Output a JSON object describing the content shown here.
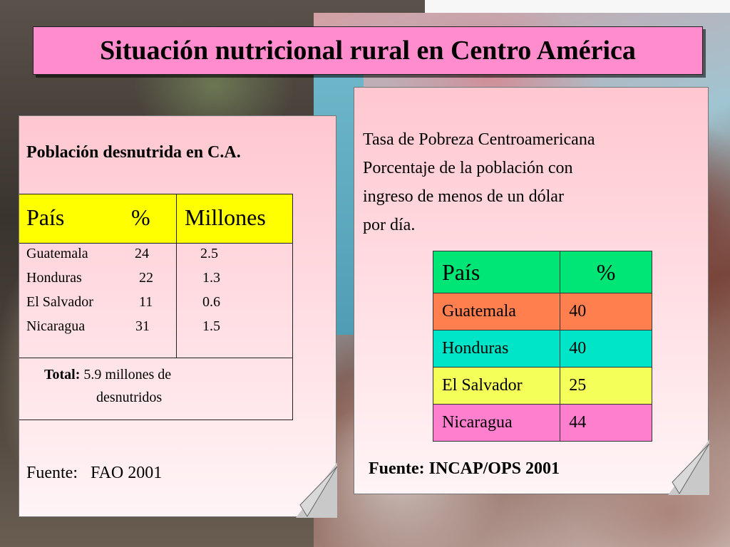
{
  "title": "Situación nutricional rural en Centro América",
  "left_card": {
    "heading": "Población desnutrida en C.A.",
    "headers": {
      "country": "País",
      "pct": "%",
      "millions": "Millones"
    },
    "rows": [
      {
        "country": "Guatemala",
        "pct": "24",
        "millions": "2.5"
      },
      {
        "country": "Honduras",
        "pct": "22",
        "millions": "1.3"
      },
      {
        "country": "El Salvador",
        "pct": "11",
        "millions": "0.6"
      },
      {
        "country": "Nicaragua",
        "pct": "31",
        "millions": "1.5"
      }
    ],
    "total_label": "Total:",
    "total_value": "5.9 millones de",
    "total_value2": "desnutridos",
    "source_label": "Fuente",
    "source_value": "FAO 2001"
  },
  "right_card": {
    "line1": "Tasa de Pobreza Centroamericana",
    "line2": "Porcentaje de la población con",
    "line3": "ingreso de menos de un dólar",
    "line4": "por día.",
    "headers": {
      "country": "País",
      "pct": "%"
    },
    "rows": [
      {
        "country": "Guatemala",
        "pct": "40",
        "color": "#ff7f4f"
      },
      {
        "country": "Honduras",
        "pct": "40",
        "color": "#00e5c8"
      },
      {
        "country": "El Salvador",
        "pct": "25",
        "color": "#f4ff5a"
      },
      {
        "country": "Nicaragua",
        "pct": "44",
        "color": "#ff7fcf"
      }
    ],
    "source": "Fuente: INCAP/OPS 2001"
  },
  "colors": {
    "title_bg": "#ff8ccc",
    "left_header_bg": "#ffff00",
    "right_header_bg": "#00e676"
  }
}
